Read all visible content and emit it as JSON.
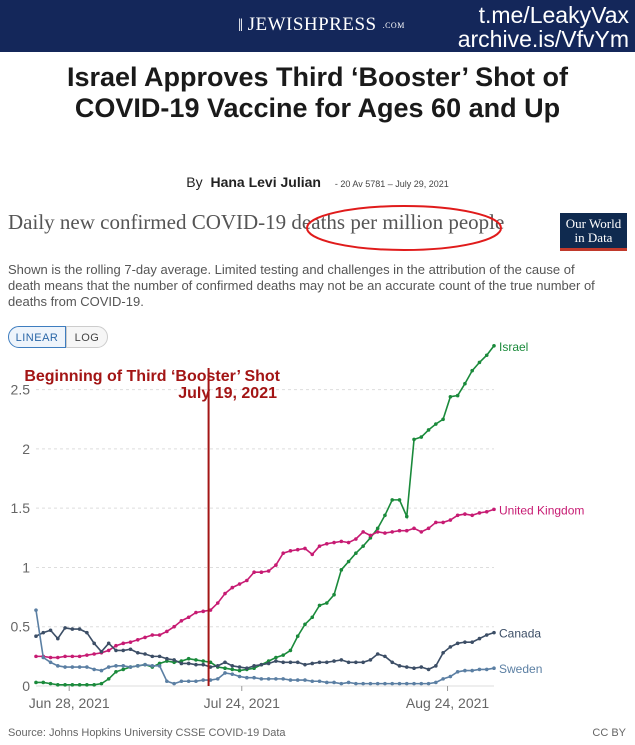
{
  "header": {
    "logo_text": "JEWISHPRESS",
    "logo_suffix": ".COM",
    "watermark_line1": "t.me/LeakyVax",
    "watermark_line2": "archive.is/VfvYm",
    "bar_color": "#14275a"
  },
  "article": {
    "headline": "Israel Approves Third ‘Booster’ Shot of COVID-19 Vaccine for Ages 60 and Up",
    "by_prefix": "By",
    "author": "Hana Levi Julian",
    "date": "- 20 Av 5781 – July 29, 2021"
  },
  "owid": {
    "logo": "Our World in Data"
  },
  "toggles": {
    "linear": "LINEAR",
    "log": "LOG"
  },
  "footer": {
    "source": "Source: Johns Hopkins University CSSE COVID-19 Data",
    "license": "CC BY"
  },
  "annotation": {
    "line1": "Beginning of Third ‘Booster’ Shot",
    "line2": "July 19, 2021",
    "x": "2021-07-19",
    "color": "#a31515"
  },
  "chart_data": {
    "type": "line",
    "title": "Daily new confirmed COVID-19 deaths per million people",
    "subtitle": "Shown is the rolling 7-day average. Limited testing and challenges in the attribution of the cause of death means that the number of confirmed deaths may not be an accurate count of the true number of deaths from COVID-19.",
    "x_start": "2021-06-23",
    "x_end": "2021-08-31",
    "xticks": [
      {
        "date": "2021-06-28",
        "label": "Jun 28, 2021"
      },
      {
        "date": "2021-07-24",
        "label": "Jul 24, 2021"
      },
      {
        "date": "2021-08-24",
        "label": "Aug 24, 2021"
      }
    ],
    "ylim": [
      0,
      2.75
    ],
    "yticks": [
      0,
      0.5,
      1,
      1.5,
      2,
      2.5
    ],
    "ytick_labels": [
      "0",
      "0.5",
      "1",
      "1.5",
      "2",
      "2.5"
    ],
    "grid": true,
    "series": [
      {
        "name": "Israel",
        "color": "#1a8a3b",
        "values": [
          0.03,
          0.03,
          0.02,
          0.01,
          0.01,
          0.01,
          0.01,
          0.01,
          0.01,
          0.02,
          0.06,
          0.12,
          0.14,
          0.16,
          0.17,
          0.18,
          0.16,
          0.19,
          0.21,
          0.2,
          0.21,
          0.23,
          0.22,
          0.21,
          0.2,
          0.16,
          0.15,
          0.14,
          0.13,
          0.14,
          0.15,
          0.18,
          0.21,
          0.24,
          0.26,
          0.3,
          0.42,
          0.52,
          0.58,
          0.68,
          0.7,
          0.77,
          0.98,
          1.05,
          1.12,
          1.18,
          1.25,
          1.33,
          1.44,
          1.57,
          1.57,
          1.43,
          2.08,
          2.1,
          2.16,
          2.21,
          2.25,
          2.44,
          2.45,
          2.55,
          2.66,
          2.73,
          2.79,
          2.87
        ]
      },
      {
        "name": "United Kingdom",
        "color": "#c71b73",
        "values": [
          0.25,
          0.25,
          0.24,
          0.24,
          0.25,
          0.25,
          0.25,
          0.26,
          0.27,
          0.28,
          0.3,
          0.34,
          0.36,
          0.37,
          0.39,
          0.41,
          0.43,
          0.43,
          0.46,
          0.5,
          0.55,
          0.58,
          0.62,
          0.63,
          0.64,
          0.7,
          0.78,
          0.83,
          0.86,
          0.89,
          0.96,
          0.96,
          0.97,
          1.02,
          1.12,
          1.14,
          1.15,
          1.16,
          1.11,
          1.18,
          1.2,
          1.21,
          1.22,
          1.21,
          1.24,
          1.3,
          1.27,
          1.3,
          1.29,
          1.3,
          1.31,
          1.31,
          1.33,
          1.3,
          1.33,
          1.38,
          1.38,
          1.4,
          1.44,
          1.45,
          1.44,
          1.46,
          1.47,
          1.49
        ]
      },
      {
        "name": "Canada",
        "color": "#3c4e66",
        "values": [
          0.42,
          0.45,
          0.47,
          0.4,
          0.49,
          0.48,
          0.48,
          0.45,
          0.36,
          0.29,
          0.36,
          0.3,
          0.3,
          0.31,
          0.28,
          0.27,
          0.25,
          0.25,
          0.23,
          0.22,
          0.19,
          0.19,
          0.18,
          0.18,
          0.16,
          0.17,
          0.2,
          0.17,
          0.16,
          0.15,
          0.17,
          0.18,
          0.19,
          0.21,
          0.2,
          0.2,
          0.2,
          0.18,
          0.19,
          0.2,
          0.2,
          0.21,
          0.22,
          0.2,
          0.2,
          0.2,
          0.22,
          0.27,
          0.25,
          0.2,
          0.17,
          0.16,
          0.15,
          0.16,
          0.14,
          0.17,
          0.28,
          0.33,
          0.36,
          0.37,
          0.37,
          0.4,
          0.43,
          0.45
        ]
      },
      {
        "name": "Sweden",
        "color": "#5b7fa3",
        "values": [
          0.64,
          0.24,
          0.2,
          0.17,
          0.16,
          0.16,
          0.16,
          0.16,
          0.14,
          0.13,
          0.16,
          0.17,
          0.17,
          0.16,
          0.17,
          0.18,
          0.17,
          0.17,
          0.04,
          0.02,
          0.04,
          0.04,
          0.04,
          0.05,
          0.05,
          0.06,
          0.11,
          0.1,
          0.08,
          0.07,
          0.07,
          0.06,
          0.06,
          0.06,
          0.06,
          0.05,
          0.05,
          0.05,
          0.04,
          0.04,
          0.03,
          0.03,
          0.02,
          0.03,
          0.02,
          0.02,
          0.02,
          0.02,
          0.02,
          0.02,
          0.02,
          0.02,
          0.02,
          0.02,
          0.02,
          0.03,
          0.06,
          0.08,
          0.12,
          0.13,
          0.13,
          0.14,
          0.14,
          0.15
        ]
      }
    ]
  }
}
